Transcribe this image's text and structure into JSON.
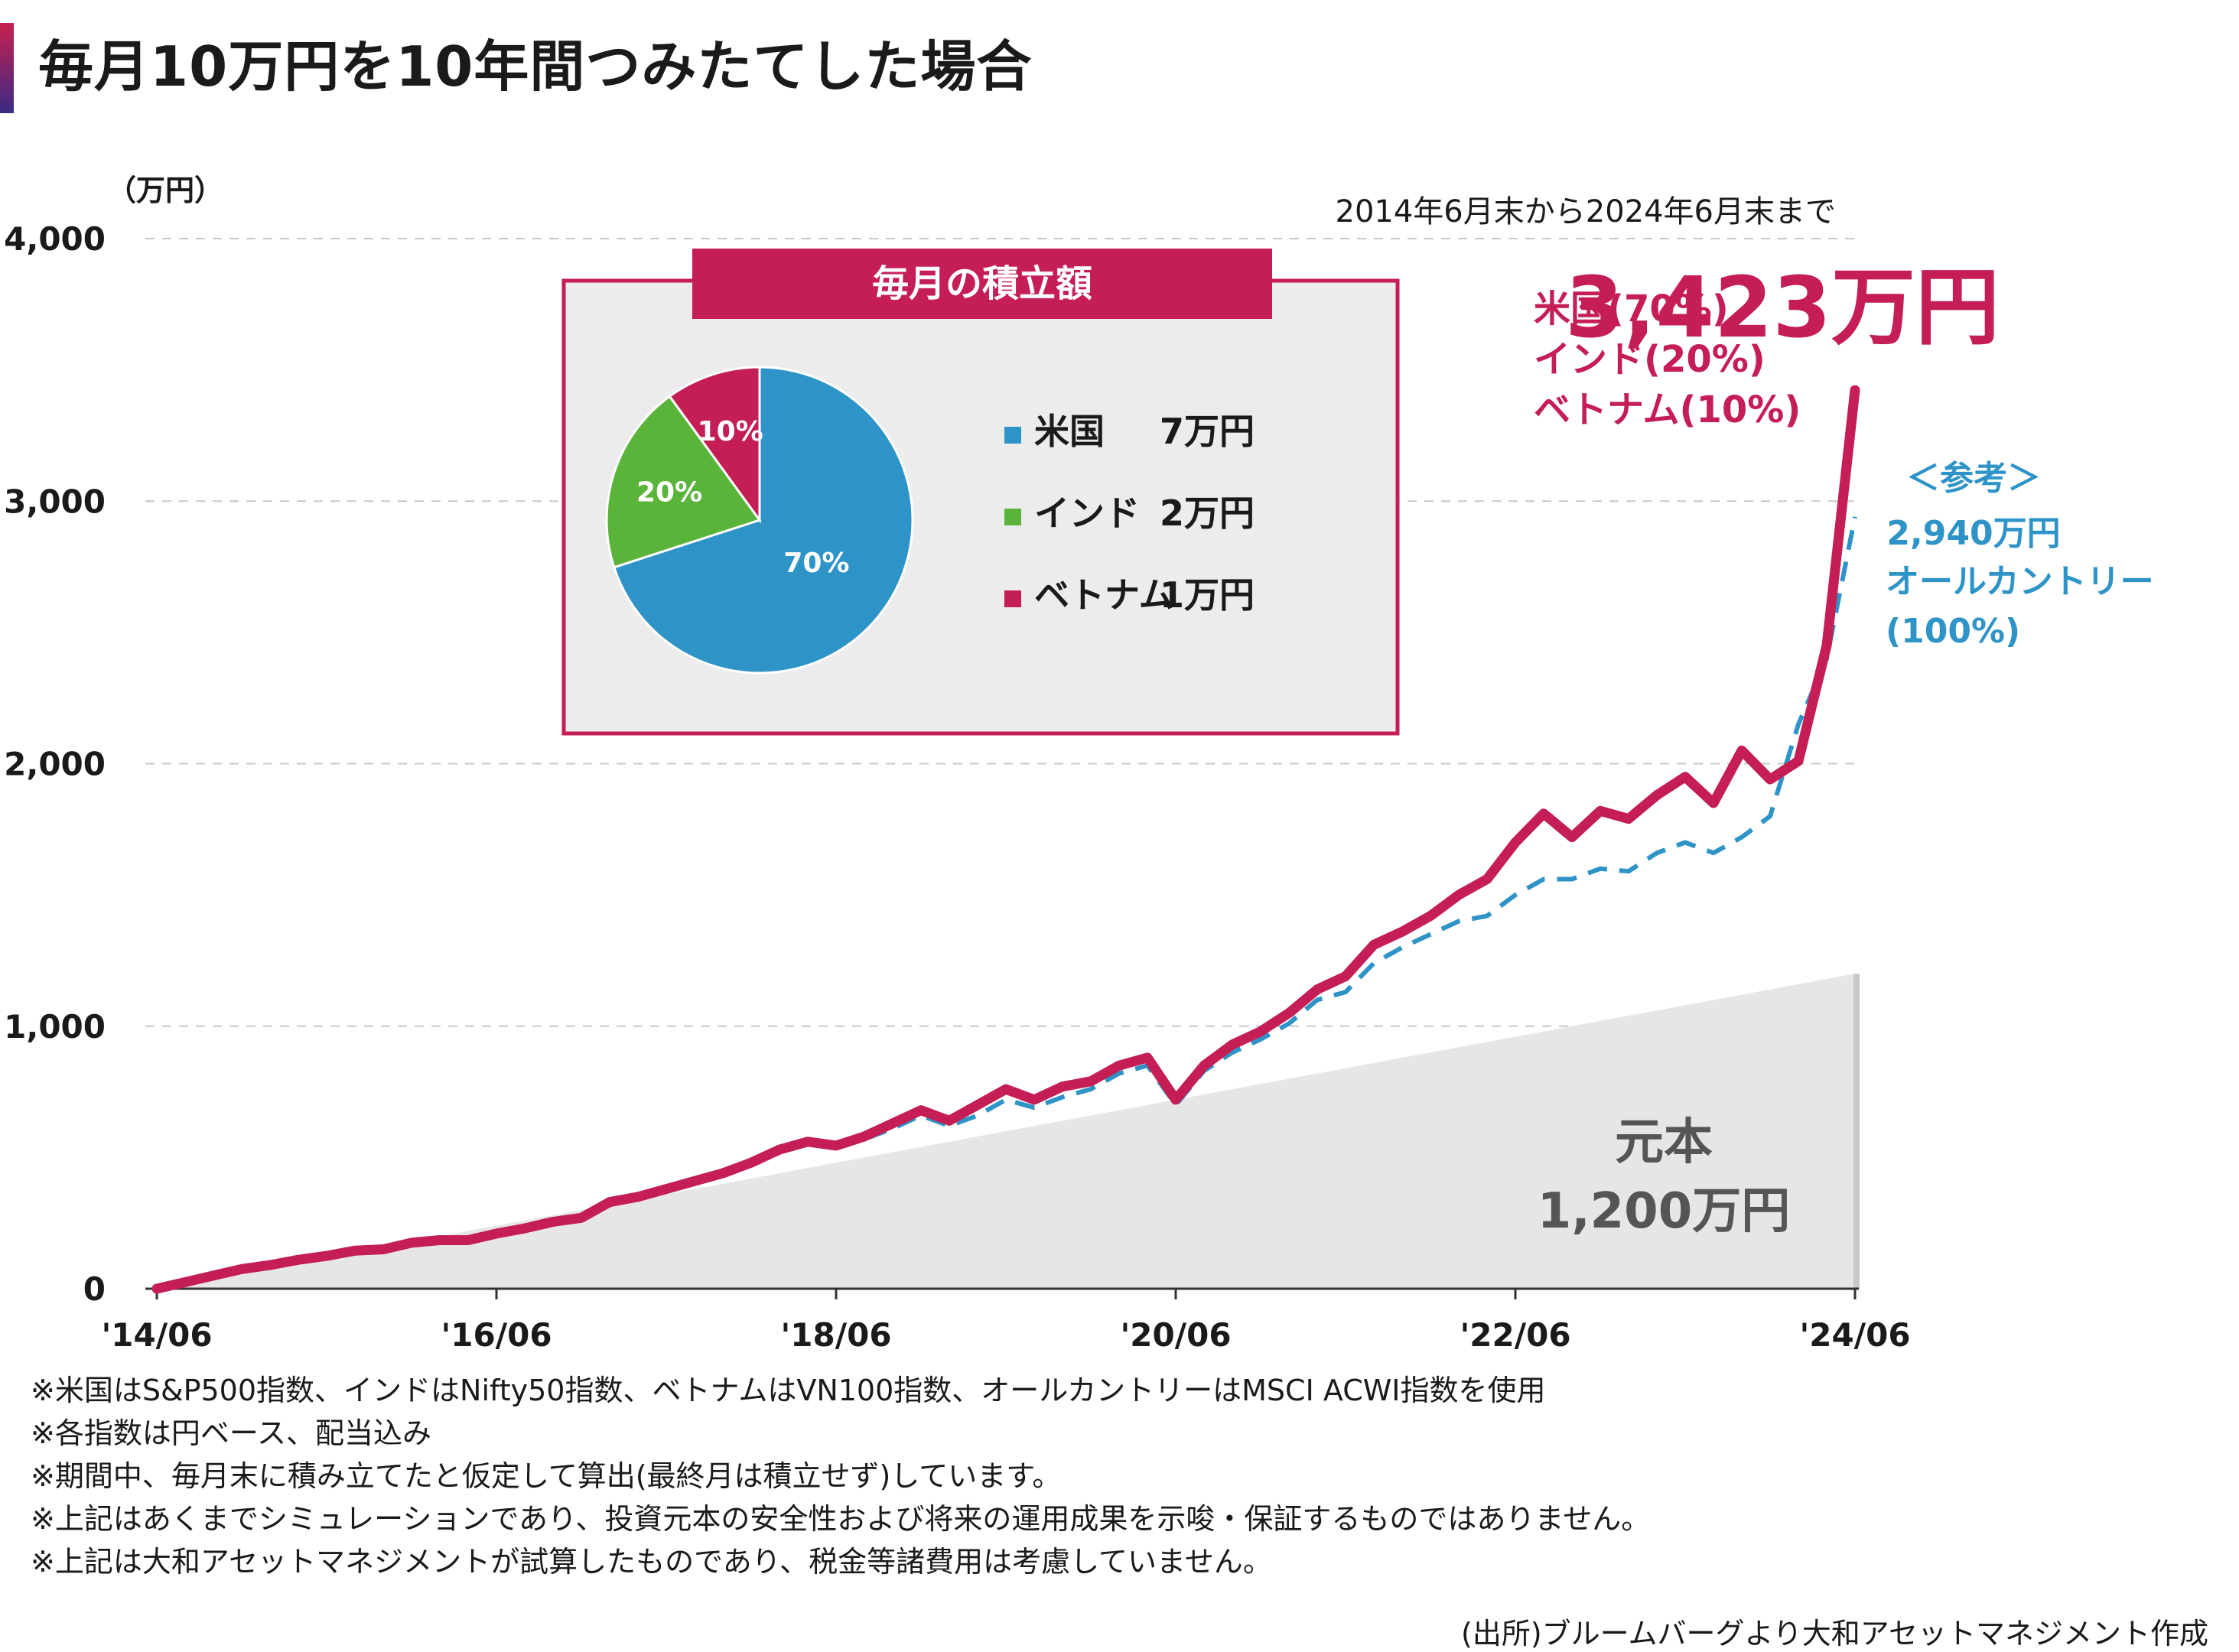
{
  "title": "毎月10万円を10年間つみたてした場合",
  "chart_data": {
    "type": "line",
    "y_unit_label": "（万円）",
    "period_label": "2014年6月末から2024年6月末まで",
    "ylim": [
      0,
      4000
    ],
    "y_ticks": [
      "0",
      "1,000",
      "2,000",
      "3,000",
      "4,000"
    ],
    "x_tick_labels": [
      "'14/06",
      "'16/06",
      "'18/06",
      "'20/06",
      "'22/06",
      "'24/06"
    ],
    "grid": true,
    "series": [
      {
        "id": "mix",
        "label_lines": [
          "米国(70%)",
          "インド(20%)",
          "ベトナム(10%)"
        ],
        "final_value_label": "3,423万円",
        "color": "#c41e55",
        "style": "solid",
        "x": [
          0,
          2,
          4,
          6,
          8,
          10,
          12,
          14,
          16,
          18,
          20,
          22,
          24,
          26,
          28,
          30,
          32,
          34,
          36,
          38,
          40,
          42,
          44,
          46,
          48,
          50,
          52,
          54,
          56,
          58,
          60,
          62,
          64,
          66,
          68,
          70,
          72,
          74,
          76,
          78,
          80,
          82,
          84,
          86,
          88,
          90,
          92,
          94,
          96,
          98,
          100,
          102,
          104,
          106,
          108,
          110,
          112,
          114,
          116,
          118,
          120
        ],
        "values": [
          0,
          25,
          50,
          75,
          90,
          110,
          125,
          145,
          150,
          175,
          185,
          185,
          210,
          230,
          255,
          270,
          330,
          350,
          380,
          410,
          440,
          480,
          530,
          560,
          545,
          580,
          630,
          680,
          640,
          700,
          760,
          720,
          770,
          790,
          850,
          880,
          720,
          850,
          930,
          980,
          1050,
          1140,
          1190,
          1310,
          1360,
          1420,
          1500,
          1560,
          1700,
          1810,
          1720,
          1820,
          1790,
          1880,
          1950,
          1850,
          2050,
          1940,
          2010,
          2450,
          3423
        ]
      },
      {
        "id": "acwi",
        "label_lines": [
          "＜参考＞",
          "2,940万円",
          "オールカントリー",
          "(100%)"
        ],
        "color": "#2e94c8",
        "style": "dashed",
        "x": [
          48,
          50,
          52,
          54,
          56,
          58,
          60,
          62,
          64,
          66,
          68,
          70,
          72,
          74,
          76,
          78,
          80,
          82,
          84,
          86,
          88,
          90,
          92,
          94,
          96,
          98,
          100,
          102,
          104,
          106,
          108,
          110,
          112,
          114,
          116,
          118,
          120
        ],
        "values": [
          545,
          570,
          610,
          660,
          620,
          660,
          720,
          690,
          730,
          760,
          820,
          850,
          700,
          830,
          900,
          950,
          1010,
          1100,
          1130,
          1240,
          1300,
          1350,
          1400,
          1420,
          1500,
          1560,
          1560,
          1600,
          1590,
          1660,
          1700,
          1660,
          1720,
          1800,
          2150,
          2400,
          2940
        ]
      },
      {
        "id": "principal",
        "label_lines": [
          "元本",
          "1,200万円"
        ],
        "color": "#e6e6e6",
        "style": "area",
        "x": [
          0,
          120
        ],
        "values": [
          0,
          1200
        ]
      }
    ],
    "inset": {
      "title": "毎月の積立額",
      "type": "pie",
      "slices": [
        {
          "label": "米国",
          "amount": "7万円",
          "value": 70,
          "pct_label": "70%",
          "color": "#2e94c8"
        },
        {
          "label": "インド",
          "amount": "2万円",
          "value": 20,
          "pct_label": "20%",
          "color": "#5bb43a"
        },
        {
          "label": "ベトナム",
          "amount": "1万円",
          "value": 10,
          "pct_label": "10%",
          "color": "#c41e55"
        }
      ]
    }
  },
  "notes": [
    "※米国はS&P500指数、インドはNifty50指数、ベトナムはVN100指数、オールカントリーはMSCI ACWI指数を使用",
    "※各指数は円ベース、配当込み",
    "※期間中、毎月末に積み立てたと仮定して算出(最終月は積立せず)しています。",
    "※上記はあくまでシミュレーションであり、投資元本の安全性および将来の運用成果を示唆・保証するものではありません。",
    "※上記は大和アセットマネジメントが試算したものであり、税金等諸費用は考慮していません。"
  ],
  "source": "(出所)ブルームバーグより大和アセットマネジメント作成"
}
